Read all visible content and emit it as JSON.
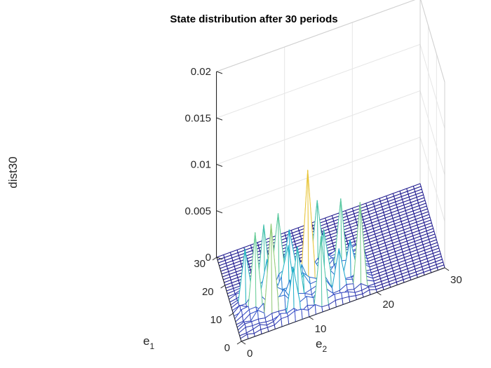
{
  "chart_data": {
    "type": "surface-mesh",
    "title": "State distribution after 30 periods",
    "xlabel": "e",
    "xlabel_subscript": "1",
    "ylabel": "e",
    "ylabel_subscript": "2",
    "zlabel": "dist30",
    "xlim": [
      0,
      30
    ],
    "ylim": [
      0,
      30
    ],
    "zlim": [
      0,
      0.02
    ],
    "grid_size": 30,
    "x_ticks": [
      "0",
      "10",
      "20",
      "30"
    ],
    "y_ticks": [
      "0",
      "10",
      "20",
      "30"
    ],
    "z_ticks": [
      "0",
      "0.005",
      "0.01",
      "0.015",
      "0.02"
    ],
    "grid": true,
    "colormap": [
      "#1f1a8f",
      "#3c52c8",
      "#2a8bd6",
      "#21b5c9",
      "#6dcf98",
      "#e8c53a"
    ],
    "peaks": [
      {
        "e1": 10,
        "e2": 11,
        "value": 0.0125
      },
      {
        "e1": 5,
        "e2": 5,
        "value": 0.0098
      },
      {
        "e1": 4,
        "e2": 18,
        "value": 0.009
      },
      {
        "e1": 8,
        "e2": 3,
        "value": 0.0085
      },
      {
        "e1": 2,
        "e2": 12,
        "value": 0.0075
      },
      {
        "e1": 13,
        "e2": 7,
        "value": 0.008
      },
      {
        "e1": 11,
        "e2": 16,
        "value": 0.0078
      },
      {
        "e1": 15,
        "e2": 13,
        "value": 0.0072
      },
      {
        "e1": 14,
        "e2": 5,
        "value": 0.007
      },
      {
        "e1": 7,
        "e2": 13,
        "value": 0.0065
      },
      {
        "e1": 6,
        "e2": 9,
        "value": 0.006
      },
      {
        "e1": 12,
        "e2": 2,
        "value": 0.0058
      },
      {
        "e1": 9,
        "e2": 8,
        "value": 0.0055
      },
      {
        "e1": 3,
        "e2": 8,
        "value": 0.005
      },
      {
        "e1": 16,
        "e2": 9,
        "value": 0.0048
      },
      {
        "e1": 5,
        "e2": 15,
        "value": 0.0045
      },
      {
        "e1": 10,
        "e2": 5,
        "value": 0.0045
      },
      {
        "e1": 8,
        "e2": 17,
        "value": 0.004
      }
    ]
  }
}
